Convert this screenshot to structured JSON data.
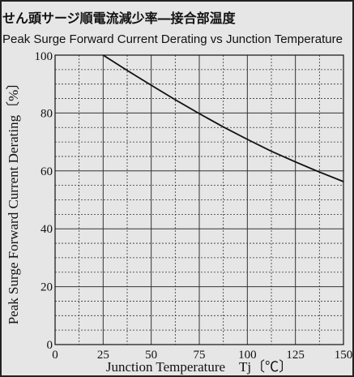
{
  "chart_data": {
    "type": "line",
    "title": "せん頭サージ順電流減少率―接合部温度",
    "subtitle": "Peak Surge Forward Current Derating vs Junction Temperature",
    "xlabel": "Junction Temperature　Tj〔℃〕",
    "ylabel": "Peak Surge Forward Current Derating〔%〕",
    "xlim": [
      0,
      150
    ],
    "ylim": [
      0,
      100
    ],
    "x_ticks": [
      0,
      25,
      50,
      75,
      100,
      125,
      150
    ],
    "y_ticks": [
      0,
      20,
      40,
      60,
      80,
      100
    ],
    "grid": true,
    "series": [
      {
        "x": [
          25,
          37.5,
          50,
          62.5,
          75,
          87.5,
          100,
          112.5,
          125,
          137.5,
          150
        ],
        "values": [
          100,
          94.7,
          89.6,
          84.6,
          79.8,
          75.2,
          70.9,
          66.8,
          63.1,
          59.6,
          56.3
        ]
      }
    ]
  },
  "colors": {
    "background": "#e6e6e6",
    "grid": "#333333",
    "line": "#111111"
  }
}
